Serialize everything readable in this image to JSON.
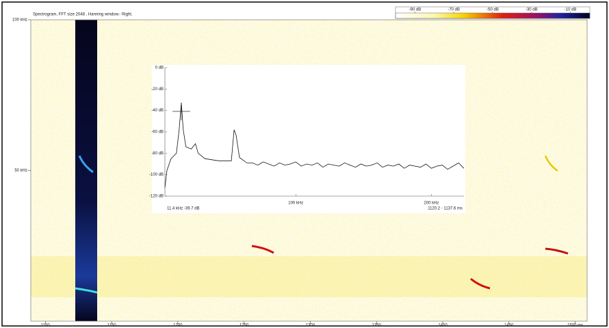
{
  "title": "Spectrogram, FFT size 2048 , Hanning window.- Right.",
  "chart_data": [
    {
      "type": "spectrogram",
      "xlim": [
        1089,
        1509
      ],
      "xticks": [
        1100,
        1150,
        1200,
        1250,
        1300,
        1350,
        1400,
        1450,
        {
          "value": 1500,
          "label": "1500 ms"
        }
      ],
      "ylim": [
        0,
        100
      ],
      "yticks": [
        {
          "value": 100,
          "label": "100 kHz"
        },
        {
          "value": 50,
          "label": "50 kHz"
        }
      ],
      "clim": [
        -100,
        0
      ],
      "cticks": [
        {
          "value": -90,
          "label": "-90 dB"
        },
        {
          "value": -70,
          "label": "-70 dB"
        },
        {
          "value": -50,
          "label": "-50 dB"
        },
        {
          "value": -30,
          "label": "-30 dB"
        },
        {
          "value": -10,
          "label": "-10 dB"
        }
      ]
    },
    {
      "type": "line",
      "xlim": [
        3.5,
        224
      ],
      "xticks": [
        {
          "value": 100,
          "label": "100 kHz"
        },
        {
          "value": 200,
          "label": "200 kHz"
        }
      ],
      "ylim": [
        -120,
        0
      ],
      "yticks": [
        {
          "value": 0,
          "label": "0 dB"
        },
        {
          "value": -20,
          "label": "-20 dB"
        },
        {
          "value": -40,
          "label": "-40 dB"
        },
        {
          "value": -60,
          "label": "-60 dB"
        },
        {
          "value": -80,
          "label": "-80 dB"
        },
        {
          "value": -100,
          "label": "-100 dB"
        },
        {
          "value": -120,
          "label": "-120 dB"
        }
      ],
      "color": "#111111",
      "annotations": [
        "11.4 kHz -39.7 dB",
        "1120.2 - 1137.6 ms"
      ],
      "x": [
        3.5,
        5,
        8,
        12,
        14,
        15.6,
        17,
        19,
        23,
        26,
        28,
        33,
        43,
        52.5,
        54.5,
        56,
        58.5,
        64,
        68,
        72,
        76,
        80,
        84,
        88,
        92,
        96,
        100,
        104,
        108,
        112,
        116,
        120,
        124,
        128,
        132,
        136,
        140,
        144,
        148,
        152,
        156,
        160,
        164,
        168,
        172,
        176,
        180,
        184,
        188,
        192,
        196,
        200,
        204,
        208,
        212,
        216,
        220,
        224
      ],
      "values": [
        -112,
        -96,
        -85,
        -80,
        -58,
        -33,
        -58,
        -74,
        -76,
        -71,
        -80,
        -85,
        -87,
        -87,
        -58,
        -63,
        -84,
        -89,
        -89,
        -91,
        -88,
        -90,
        -92,
        -89,
        -91,
        -90,
        -88,
        -92,
        -90,
        -91,
        -89,
        -93,
        -90,
        -91,
        -92,
        -89,
        -91,
        -93,
        -90,
        -92,
        -91,
        -89,
        -93,
        -91,
        -92,
        -90,
        -94,
        -91,
        -92,
        -93,
        -90,
        -94,
        -92,
        -91,
        -95,
        -92,
        -89,
        -94
      ]
    }
  ]
}
